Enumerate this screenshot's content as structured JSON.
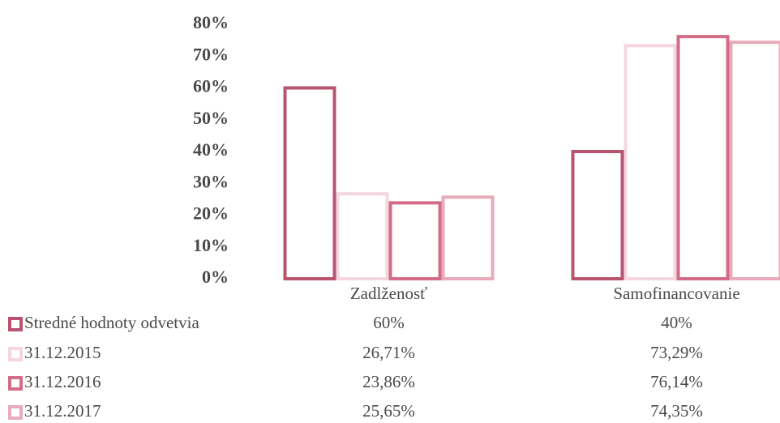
{
  "chart_data": {
    "type": "bar",
    "categories": [
      "Zadlženosť",
      "Samofinancovanie"
    ],
    "series": [
      {
        "name": "Stredné hodnoty odvetvia",
        "color": "#b9546f",
        "values": [
          60,
          40
        ],
        "value_labels": [
          "60%",
          "40%"
        ]
      },
      {
        "name": "31.12.2015",
        "color": "#f4d6de",
        "values": [
          26.71,
          73.29
        ],
        "value_labels": [
          "26,71%",
          "73,29%"
        ]
      },
      {
        "name": "31.12.2016",
        "color": "#d26c88",
        "values": [
          23.86,
          76.14
        ],
        "value_labels": [
          "23,86%",
          "76,14%"
        ]
      },
      {
        "name": "31.12.2017",
        "color": "#e8abbb",
        "values": [
          25.65,
          74.35
        ],
        "value_labels": [
          "25,65%",
          "74,35%"
        ]
      }
    ],
    "ylim": [
      0,
      80
    ],
    "yticks": [
      {
        "value": 0,
        "label": "0%"
      },
      {
        "value": 10,
        "label": "10%"
      },
      {
        "value": 20,
        "label": "20%"
      },
      {
        "value": 30,
        "label": "30%"
      },
      {
        "value": 40,
        "label": "40%"
      },
      {
        "value": 50,
        "label": "50%"
      },
      {
        "value": 60,
        "label": "60%"
      },
      {
        "value": 70,
        "label": "70%"
      },
      {
        "value": 80,
        "label": "80%"
      }
    ],
    "grid": false
  }
}
